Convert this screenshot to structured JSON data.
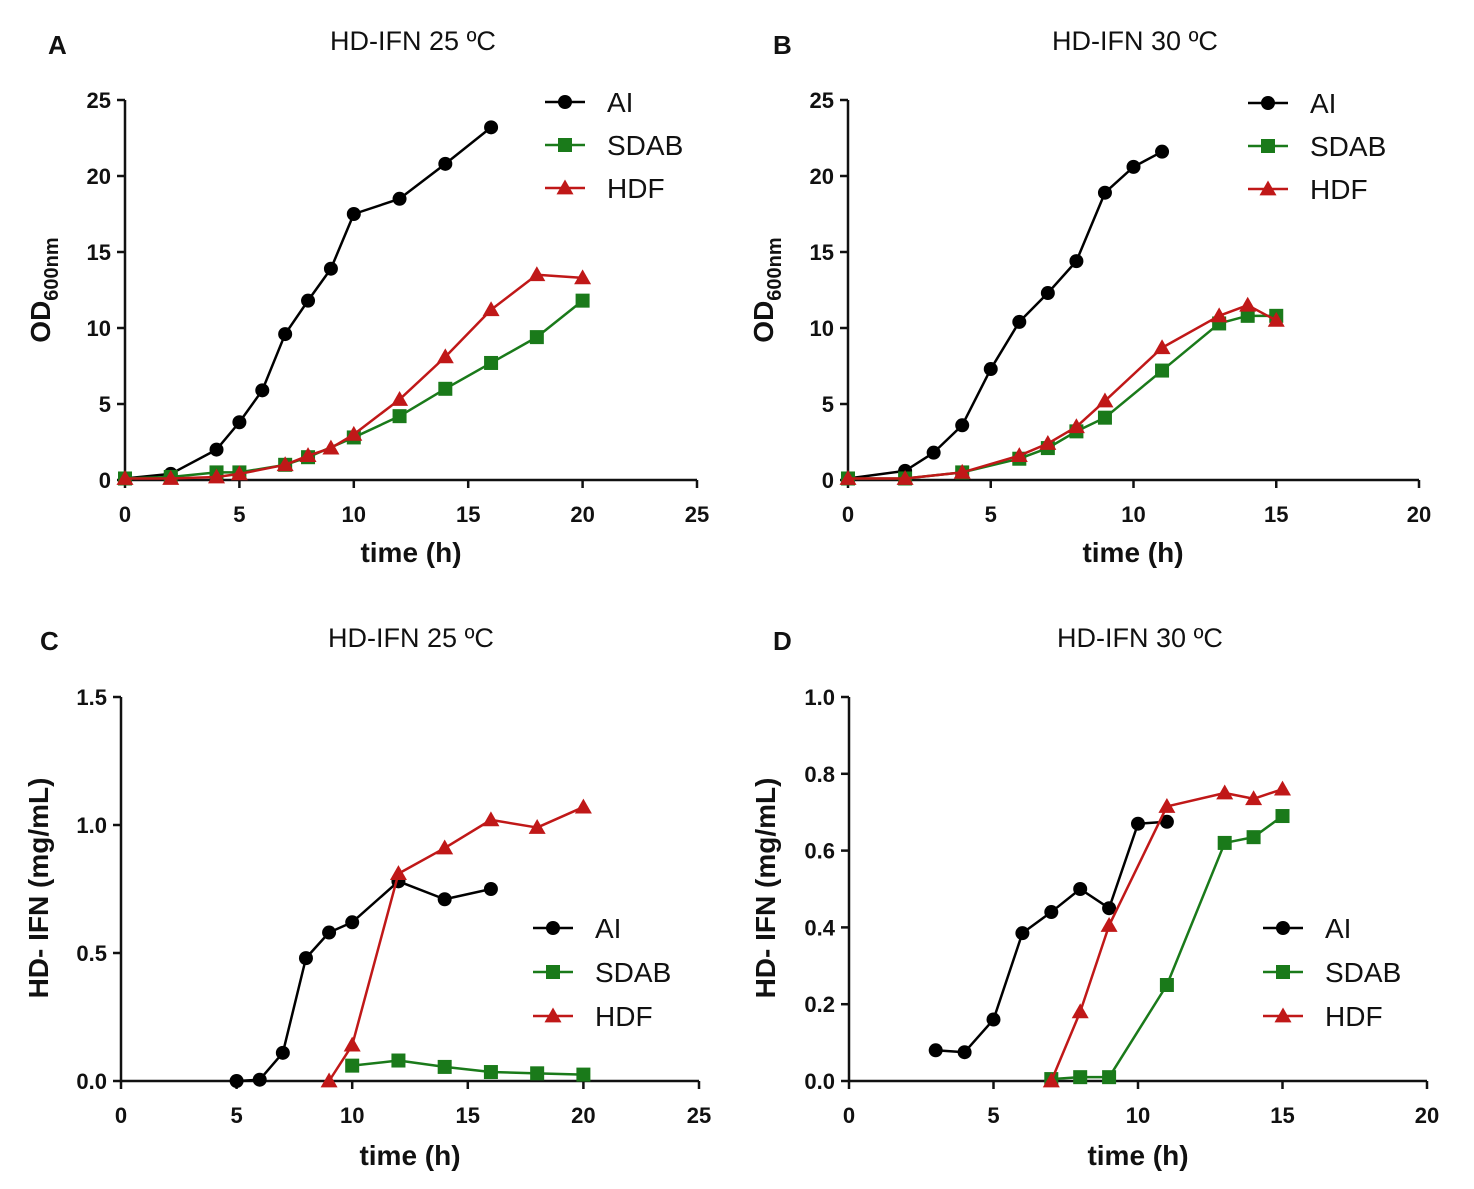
{
  "chart_data": [
    {
      "type": "line",
      "panel": "A",
      "title": "HD-IFN  25 ºC",
      "xlabel": "time (h)",
      "ylabel": "OD",
      "ylabel_sub": "600nm",
      "xlim": [
        0,
        25
      ],
      "ylim": [
        0,
        25
      ],
      "xticks": [
        "0",
        "5",
        "10",
        "15",
        "20",
        "25"
      ],
      "yticks": [
        "0",
        "5",
        "10",
        "15",
        "20",
        "25"
      ],
      "legend_position": "top-right",
      "series": [
        {
          "name": "AI",
          "color": "#000000",
          "marker": "circle",
          "x": [
            0,
            2,
            4,
            5,
            6,
            7,
            8,
            9,
            10,
            12,
            14,
            16
          ],
          "y": [
            0.1,
            0.4,
            2.0,
            3.8,
            5.9,
            9.6,
            11.8,
            13.9,
            17.5,
            18.5,
            20.8,
            23.2
          ]
        },
        {
          "name": "SDAB",
          "color": "#1a7a1a",
          "marker": "square",
          "x": [
            0,
            2,
            4,
            5,
            7,
            8,
            10,
            12,
            14,
            16,
            18,
            20
          ],
          "y": [
            0.1,
            0.2,
            0.5,
            0.5,
            1.0,
            1.5,
            2.8,
            4.2,
            6.0,
            7.7,
            9.4,
            11.8
          ]
        },
        {
          "name": "HDF",
          "color": "#c01818",
          "marker": "triangle",
          "x": [
            0,
            2,
            4,
            5,
            7,
            8,
            9,
            10,
            12,
            14,
            16,
            18,
            20
          ],
          "y": [
            0.1,
            0.1,
            0.2,
            0.4,
            1.0,
            1.6,
            2.1,
            3.0,
            5.3,
            8.1,
            11.2,
            13.5,
            13.3
          ]
        }
      ]
    },
    {
      "type": "line",
      "panel": "B",
      "title": "HD-IFN  30 ºC",
      "xlabel": "time (h)",
      "ylabel": "OD",
      "ylabel_sub": "600nm",
      "xlim": [
        0,
        20
      ],
      "ylim": [
        0,
        25
      ],
      "xticks": [
        "0",
        "5",
        "10",
        "15",
        "20"
      ],
      "yticks": [
        "0",
        "5",
        "10",
        "15",
        "20",
        "25"
      ],
      "legend_position": "top-right",
      "series": [
        {
          "name": "AI",
          "color": "#000000",
          "marker": "circle",
          "x": [
            0,
            2,
            3,
            4,
            5,
            6,
            7,
            8,
            9,
            10,
            11
          ],
          "y": [
            0.1,
            0.6,
            1.8,
            3.6,
            7.3,
            10.4,
            12.3,
            14.4,
            18.9,
            20.6,
            21.6
          ]
        },
        {
          "name": "SDAB",
          "color": "#1a7a1a",
          "marker": "square",
          "x": [
            0,
            2,
            4,
            6,
            7,
            8,
            9,
            11,
            13,
            14,
            15
          ],
          "y": [
            0.1,
            0.1,
            0.5,
            1.4,
            2.1,
            3.2,
            4.1,
            7.2,
            10.3,
            10.8,
            10.8
          ]
        },
        {
          "name": "HDF",
          "color": "#c01818",
          "marker": "triangle",
          "x": [
            0,
            2,
            4,
            6,
            7,
            8,
            9,
            11,
            13,
            14,
            15
          ],
          "y": [
            0.1,
            0.1,
            0.5,
            1.6,
            2.4,
            3.5,
            5.2,
            8.7,
            10.8,
            11.5,
            10.5
          ]
        }
      ]
    },
    {
      "type": "line",
      "panel": "C",
      "title": "HD-IFN  25 ºC",
      "xlabel": "time (h)",
      "ylabel": "HD- IFN (mg/mL)",
      "ylabel_sub": "",
      "xlim": [
        0,
        25
      ],
      "ylim": [
        0,
        1.5
      ],
      "xticks": [
        "0",
        "5",
        "10",
        "15",
        "20",
        "25"
      ],
      "yticks": [
        "0.0",
        "0.5",
        "1.0",
        "1.5"
      ],
      "legend_position": "bottom-right",
      "series": [
        {
          "name": "AI",
          "color": "#000000",
          "marker": "circle",
          "x": [
            5,
            6,
            7,
            8,
            9,
            10,
            12,
            14,
            16
          ],
          "y": [
            0.0,
            0.005,
            0.11,
            0.48,
            0.58,
            0.62,
            0.78,
            0.71,
            0.75
          ]
        },
        {
          "name": "SDAB",
          "color": "#1a7a1a",
          "marker": "square",
          "x": [
            10,
            12,
            14,
            16,
            18,
            20
          ],
          "y": [
            0.06,
            0.08,
            0.055,
            0.035,
            0.03,
            0.025
          ]
        },
        {
          "name": "HDF",
          "color": "#c01818",
          "marker": "triangle",
          "x": [
            9,
            10,
            12,
            14,
            16,
            18,
            20
          ],
          "y": [
            0.0,
            0.14,
            0.81,
            0.91,
            1.02,
            0.99,
            1.07
          ]
        }
      ]
    },
    {
      "type": "line",
      "panel": "D",
      "title": "HD-IFN  30 ºC",
      "xlabel": "time (h)",
      "ylabel": "HD- IFN (mg/mL)",
      "ylabel_sub": "",
      "xlim": [
        0,
        20
      ],
      "ylim": [
        0,
        1.0
      ],
      "xticks": [
        "0",
        "5",
        "10",
        "15",
        "20"
      ],
      "yticks": [
        "0.0",
        "0.2",
        "0.4",
        "0.6",
        "0.8",
        "1.0"
      ],
      "legend_position": "bottom-right",
      "series": [
        {
          "name": "AI",
          "color": "#000000",
          "marker": "circle",
          "x": [
            3,
            4,
            5,
            6,
            7,
            8,
            9,
            10,
            11
          ],
          "y": [
            0.08,
            0.075,
            0.16,
            0.385,
            0.44,
            0.5,
            0.45,
            0.67,
            0.675
          ]
        },
        {
          "name": "SDAB",
          "color": "#1a7a1a",
          "marker": "square",
          "x": [
            7,
            8,
            9,
            11,
            13,
            14,
            15
          ],
          "y": [
            0.005,
            0.01,
            0.01,
            0.25,
            0.62,
            0.635,
            0.69
          ]
        },
        {
          "name": "HDF",
          "color": "#c01818",
          "marker": "triangle",
          "x": [
            7,
            8,
            9,
            11,
            13,
            14,
            15
          ],
          "y": [
            0.0,
            0.18,
            0.405,
            0.715,
            0.75,
            0.735,
            0.76
          ]
        }
      ]
    }
  ]
}
